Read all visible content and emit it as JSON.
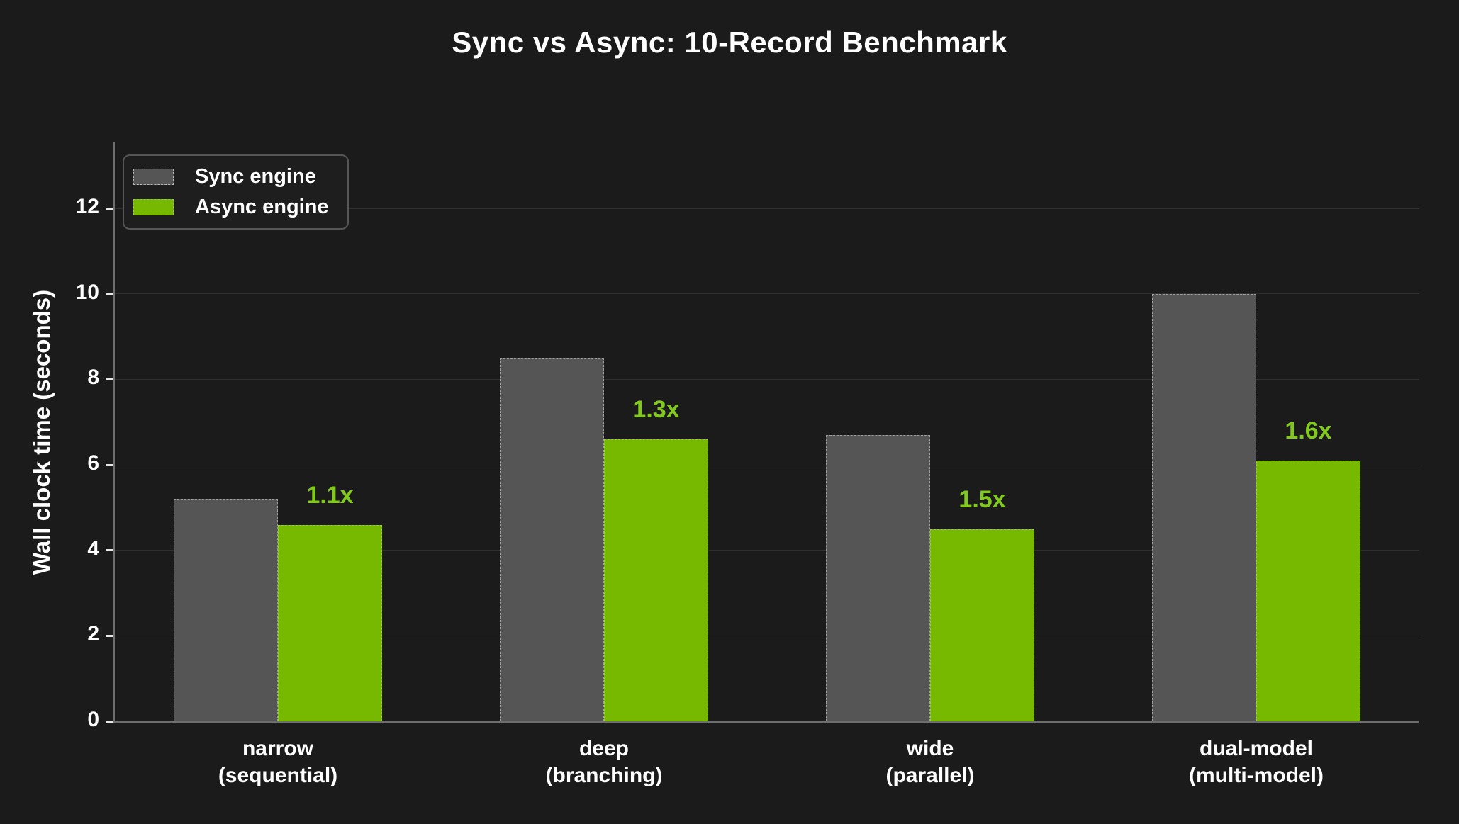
{
  "chart_data": {
    "type": "bar",
    "title": "Sync vs Async: 10-Record Benchmark",
    "xlabel": "",
    "ylabel": "Wall clock time (seconds)",
    "categories": [
      {
        "line1": "narrow",
        "line2": "(sequential)"
      },
      {
        "line1": "deep",
        "line2": "(branching)"
      },
      {
        "line1": "wide",
        "line2": "(parallel)"
      },
      {
        "line1": "dual-model",
        "line2": "(multi-model)"
      }
    ],
    "series": [
      {
        "name": "Sync engine",
        "color": "#555555",
        "values": [
          5.2,
          8.5,
          6.7,
          10.0
        ]
      },
      {
        "name": "Async engine",
        "color": "#76b900",
        "values": [
          4.6,
          6.6,
          4.5,
          6.1
        ]
      }
    ],
    "speedup_labels": [
      "1.1x",
      "1.3x",
      "1.5x",
      "1.6x"
    ],
    "speedup_label_color": "#82c91e",
    "yticks": [
      0,
      2,
      4,
      6,
      8,
      10,
      12
    ],
    "ylim": [
      0,
      13.56
    ],
    "grid": "horizontal",
    "legend_position": "top-left",
    "background_color": "#1b1b1b",
    "text_color": "#ffffff"
  }
}
